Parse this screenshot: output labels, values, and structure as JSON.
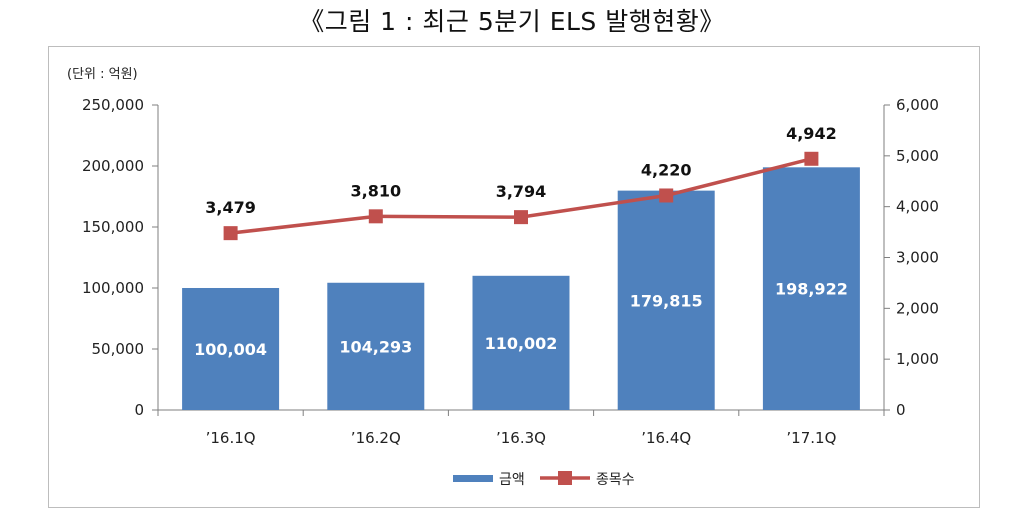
{
  "title": "《그림 1 : 최근 5분기 ELS 발행현황》",
  "unit_label": "(단위 : 억원)",
  "colors": {
    "bar": "#4f81bd",
    "line": "#c0504d",
    "axis": "#7f7f7f"
  },
  "chart_data": {
    "type": "bar",
    "categories": [
      "’16.1Q",
      "’16.2Q",
      "’16.3Q",
      "’16.4Q",
      "’17.1Q"
    ],
    "series": [
      {
        "name": "금액",
        "type": "bar",
        "axis": "left",
        "values": [
          100004,
          104293,
          110002,
          179815,
          198922
        ],
        "labels": [
          "100,004",
          "104,293",
          "110,002",
          "179,815",
          "198,922"
        ]
      },
      {
        "name": "종목수",
        "type": "line",
        "axis": "right",
        "values": [
          3479,
          3810,
          3794,
          4220,
          4942
        ],
        "labels": [
          "3,479",
          "3,810",
          "3,794",
          "4,220",
          "4,942"
        ]
      }
    ],
    "y_left": {
      "min": 0,
      "max": 250000,
      "ticks": [
        "0",
        "50,000",
        "100,000",
        "150,000",
        "200,000",
        "250,000"
      ]
    },
    "y_right": {
      "min": 0,
      "max": 6000,
      "ticks": [
        "0",
        "1,000",
        "2,000",
        "3,000",
        "4,000",
        "5,000",
        "6,000"
      ]
    },
    "legend_position": "bottom",
    "grid": false
  }
}
